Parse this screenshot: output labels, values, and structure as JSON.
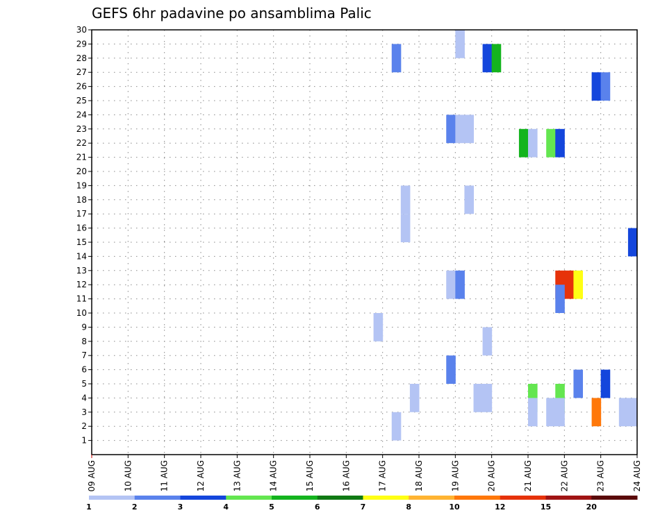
{
  "chart_data": {
    "type": "heatmap",
    "title": "GEFS 6hr padavine po ansamblima Palic",
    "xlabel": "",
    "ylabel": "",
    "x_ticks": [
      "09 AUG",
      "10 AUG",
      "11 AUG",
      "12 AUG",
      "13 AUG",
      "14 AUG",
      "15 AUG",
      "16 AUG",
      "17 AUG",
      "18 AUG",
      "19 AUG",
      "20 AUG",
      "21 AUG",
      "22 AUG",
      "23 AUG",
      "24 AUG"
    ],
    "x_range_days": [
      0,
      15
    ],
    "y_range": [
      0,
      30
    ],
    "y_ticks": [
      1,
      2,
      3,
      4,
      5,
      6,
      7,
      8,
      9,
      10,
      11,
      12,
      13,
      14,
      15,
      16,
      17,
      18,
      19,
      20,
      21,
      22,
      23,
      24,
      25,
      26,
      27,
      28,
      29,
      30
    ],
    "grid": true,
    "colorbar": {
      "labels": [
        "1",
        "2",
        "3",
        "4",
        "5",
        "6",
        "7",
        "8",
        "10",
        "12",
        "15",
        "20"
      ],
      "colors": [
        "#b4c4f4",
        "#5a82ec",
        "#1446dc",
        "#64e650",
        "#14b41e",
        "#107a14",
        "#ffff14",
        "#ffb432",
        "#ff780a",
        "#e6320a",
        "#a01414",
        "#5a0a0a"
      ]
    },
    "cells": [
      {
        "day": "17 AUG",
        "hour": 6,
        "member": 29,
        "cls": 1
      },
      {
        "day": "19 AUG",
        "hour": 0,
        "member": 30,
        "cls": 0
      },
      {
        "day": "19 AUG",
        "hour": 18,
        "member": 29,
        "cls": 2
      },
      {
        "day": "20 AUG",
        "hour": 0,
        "member": 29,
        "cls": 4
      },
      {
        "day": "22 AUG",
        "hour": 18,
        "member": 27,
        "cls": 2
      },
      {
        "day": "23 AUG",
        "hour": 0,
        "member": 27,
        "cls": 1
      },
      {
        "day": "18 AUG",
        "hour": 18,
        "member": 24,
        "cls": 1
      },
      {
        "day": "19 AUG",
        "hour": 0,
        "member": 24,
        "cls": 0
      },
      {
        "day": "19 AUG",
        "hour": 6,
        "member": 24,
        "cls": 0
      },
      {
        "day": "20 AUG",
        "hour": 18,
        "member": 23,
        "cls": 4
      },
      {
        "day": "21 AUG",
        "hour": 0,
        "member": 23,
        "cls": 0
      },
      {
        "day": "21 AUG",
        "hour": 12,
        "member": 23,
        "cls": 3
      },
      {
        "day": "21 AUG",
        "hour": 18,
        "member": 23,
        "cls": 2
      },
      {
        "day": "17 AUG",
        "hour": 12,
        "member": 19,
        "cls": 0
      },
      {
        "day": "19 AUG",
        "hour": 6,
        "member": 19,
        "cls": 0
      },
      {
        "day": "17 AUG",
        "hour": 12,
        "member": 17,
        "cls": 0
      },
      {
        "day": "23 AUG",
        "hour": 18,
        "member": 16,
        "cls": 2
      },
      {
        "day": "21 AUG",
        "hour": 18,
        "member": 13,
        "cls": 9
      },
      {
        "day": "22 AUG",
        "hour": 0,
        "member": 13,
        "cls": 9
      },
      {
        "day": "22 AUG",
        "hour": 6,
        "member": 13,
        "cls": 6
      },
      {
        "day": "18 AUG",
        "hour": 18,
        "member": 13,
        "cls": 0
      },
      {
        "day": "19 AUG",
        "hour": 0,
        "member": 13,
        "cls": 1
      },
      {
        "day": "21 AUG",
        "hour": 18,
        "member": 12,
        "cls": 1
      },
      {
        "day": "16 AUG",
        "hour": 18,
        "member": 10,
        "cls": 0
      },
      {
        "day": "19 AUG",
        "hour": 18,
        "member": 9,
        "cls": 0
      },
      {
        "day": "18 AUG",
        "hour": 18,
        "member": 7,
        "cls": 1
      },
      {
        "day": "22 AUG",
        "hour": 6,
        "member": 6,
        "cls": 1
      },
      {
        "day": "23 AUG",
        "hour": 0,
        "member": 6,
        "cls": 2
      },
      {
        "day": "17 AUG",
        "hour": 18,
        "member": 5,
        "cls": 0
      },
      {
        "day": "19 AUG",
        "hour": 12,
        "member": 5,
        "cls": 0
      },
      {
        "day": "19 AUG",
        "hour": 18,
        "member": 5,
        "cls": 0
      },
      {
        "day": "21 AUG",
        "hour": 0,
        "member": 5,
        "cls": 3
      },
      {
        "day": "21 AUG",
        "hour": 18,
        "member": 5,
        "cls": 3
      },
      {
        "day": "21 AUG",
        "hour": 0,
        "member": 4,
        "cls": 0
      },
      {
        "day": "21 AUG",
        "hour": 12,
        "member": 4,
        "cls": 0
      },
      {
        "day": "21 AUG",
        "hour": 18,
        "member": 4,
        "cls": 0
      },
      {
        "day": "22 AUG",
        "hour": 18,
        "member": 4,
        "cls": 8
      },
      {
        "day": "23 AUG",
        "hour": 12,
        "member": 4,
        "cls": 0
      },
      {
        "day": "23 AUG",
        "hour": 18,
        "member": 4,
        "cls": 0
      },
      {
        "day": "17 AUG",
        "hour": 6,
        "member": 3,
        "cls": 0
      }
    ]
  }
}
